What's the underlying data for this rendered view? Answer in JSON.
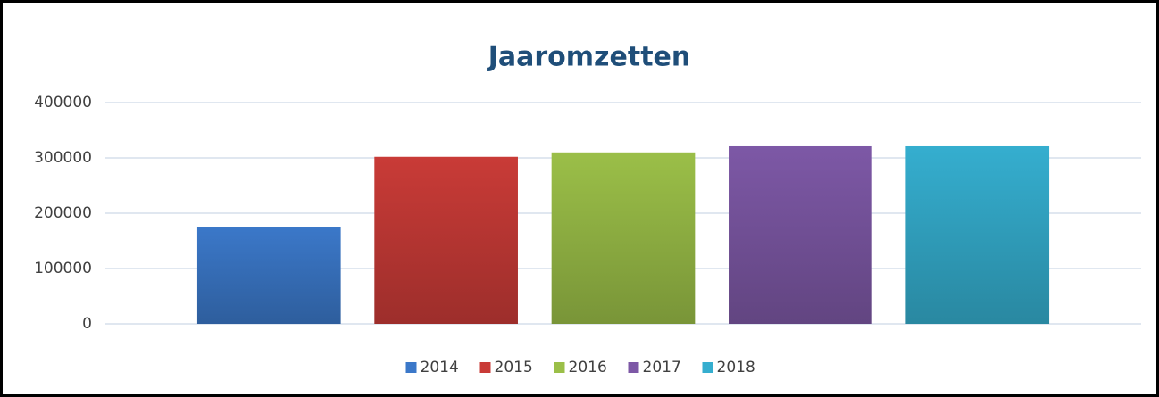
{
  "chart_data": {
    "type": "bar",
    "title": "Jaaromzetten",
    "categories": [
      null
    ],
    "series": [
      {
        "name": "2014",
        "color": "#3b78c9",
        "values": [
          175000
        ]
      },
      {
        "name": "2015",
        "color": "#c93b37",
        "values": [
          302000
        ]
      },
      {
        "name": "2016",
        "color": "#9bbf48",
        "values": [
          310000
        ]
      },
      {
        "name": "2017",
        "color": "#7d58a6",
        "values": [
          321000
        ]
      },
      {
        "name": "2018",
        "color": "#35aecf",
        "values": [
          321000
        ]
      }
    ],
    "ylim": [
      0,
      400000
    ],
    "yticks": [
      0,
      100000,
      200000,
      300000,
      400000
    ],
    "grid": true,
    "legend": "bottom"
  }
}
